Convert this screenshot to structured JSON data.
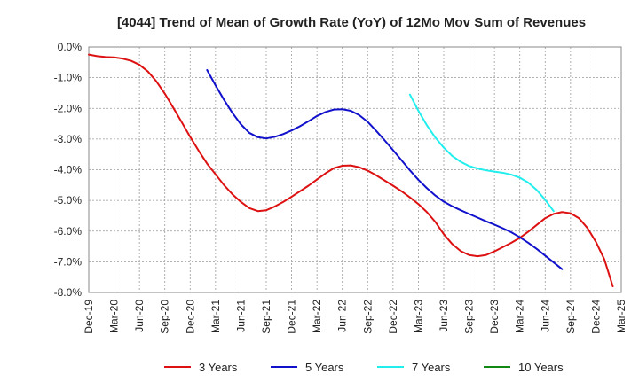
{
  "chart_data": {
    "type": "line",
    "title": "[4044]  Trend of Mean of Growth Rate (YoY) of 12Mo Mov Sum of Revenues",
    "xlabel": "",
    "ylabel": "",
    "ylim": [
      -8.0,
      0.0
    ],
    "y_ticks": [
      0,
      -1,
      -2,
      -3,
      -4,
      -5,
      -6,
      -7,
      -8
    ],
    "y_tick_labels": [
      "0.0%",
      "-1.0%",
      "-2.0%",
      "-3.0%",
      "-4.0%",
      "-5.0%",
      "-6.0%",
      "-7.0%",
      "-8.0%"
    ],
    "x_tick_labels": [
      "Dec-19",
      "Mar-20",
      "Jun-20",
      "Sep-20",
      "Dec-20",
      "Mar-21",
      "Jun-21",
      "Sep-21",
      "Dec-21",
      "Mar-22",
      "Jun-22",
      "Sep-22",
      "Dec-22",
      "Mar-23",
      "Jun-23",
      "Sep-23",
      "Dec-23",
      "Mar-24",
      "Jun-24",
      "Sep-24",
      "Dec-24",
      "Mar-25"
    ],
    "x_start": "Dec-19",
    "x_count_months": 63,
    "grid": true,
    "legend_position": "bottom",
    "series": [
      {
        "name": "3 Years",
        "color": "#dd1111",
        "start_month": 0,
        "values": [
          -0.25,
          -0.3,
          -0.33,
          -0.34,
          -0.38,
          -0.45,
          -0.58,
          -0.8,
          -1.12,
          -1.52,
          -1.98,
          -2.45,
          -2.93,
          -3.38,
          -3.8,
          -4.15,
          -4.5,
          -4.8,
          -5.05,
          -5.25,
          -5.35,
          -5.32,
          -5.2,
          -5.05,
          -4.88,
          -4.7,
          -4.52,
          -4.32,
          -4.12,
          -3.95,
          -3.87,
          -3.86,
          -3.92,
          -4.03,
          -4.18,
          -4.35,
          -4.52,
          -4.7,
          -4.9,
          -5.12,
          -5.38,
          -5.7,
          -6.1,
          -6.42,
          -6.65,
          -6.78,
          -6.82,
          -6.78,
          -6.66,
          -6.52,
          -6.38,
          -6.22,
          -6.02,
          -5.8,
          -5.58,
          -5.44,
          -5.38,
          -5.42,
          -5.58,
          -5.9,
          -6.35,
          -6.92,
          -7.8
        ]
      },
      {
        "name": "5 Years",
        "color": "#1111cc",
        "start_month": 14,
        "values": [
          -0.75,
          -1.25,
          -1.72,
          -2.15,
          -2.52,
          -2.8,
          -2.94,
          -2.98,
          -2.93,
          -2.84,
          -2.72,
          -2.58,
          -2.42,
          -2.25,
          -2.12,
          -2.04,
          -2.03,
          -2.08,
          -2.22,
          -2.44,
          -2.73,
          -3.04,
          -3.36,
          -3.69,
          -4.02,
          -4.33,
          -4.6,
          -4.84,
          -5.04,
          -5.19,
          -5.32,
          -5.44,
          -5.56,
          -5.68,
          -5.79,
          -5.91,
          -6.04,
          -6.2,
          -6.38,
          -6.58,
          -6.8,
          -7.02,
          -7.24
        ]
      },
      {
        "name": "7 Years",
        "color": "#22eeee",
        "start_month": 38,
        "values": [
          -1.55,
          -2.08,
          -2.55,
          -2.95,
          -3.28,
          -3.55,
          -3.74,
          -3.88,
          -3.96,
          -4.02,
          -4.06,
          -4.1,
          -4.16,
          -4.26,
          -4.42,
          -4.66,
          -4.98,
          -5.35
        ]
      },
      {
        "name": "10 Years",
        "color": "#118811",
        "start_month": 0,
        "values": []
      }
    ]
  }
}
